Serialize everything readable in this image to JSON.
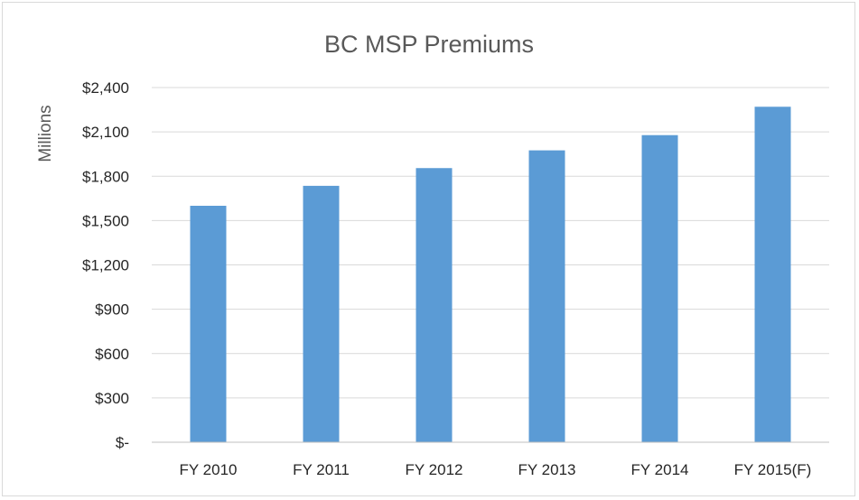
{
  "chart_data": {
    "type": "bar",
    "title": "BC MSP Premiums",
    "ylabel": "Millions",
    "xlabel": "",
    "categories": [
      "FY 2010",
      "FY 2011",
      "FY 2012",
      "FY 2013",
      "FY 2014",
      "FY 2015(F)"
    ],
    "values": [
      1600,
      1735,
      1855,
      1975,
      2078,
      2270
    ],
    "ylim": [
      0,
      2400
    ],
    "yticks": [
      0,
      300,
      600,
      900,
      1200,
      1500,
      1800,
      2100,
      2400
    ],
    "ytick_labels": [
      "$-",
      "$300",
      "$600",
      "$900",
      "$1,200",
      "$1,500",
      "$1,800",
      "$2,100",
      "$2,400"
    ],
    "grid": true,
    "legend": "none",
    "colors": {
      "bar": "#5b9bd5",
      "grid": "#d9d9d9",
      "axis": "#bfbfbf"
    }
  }
}
